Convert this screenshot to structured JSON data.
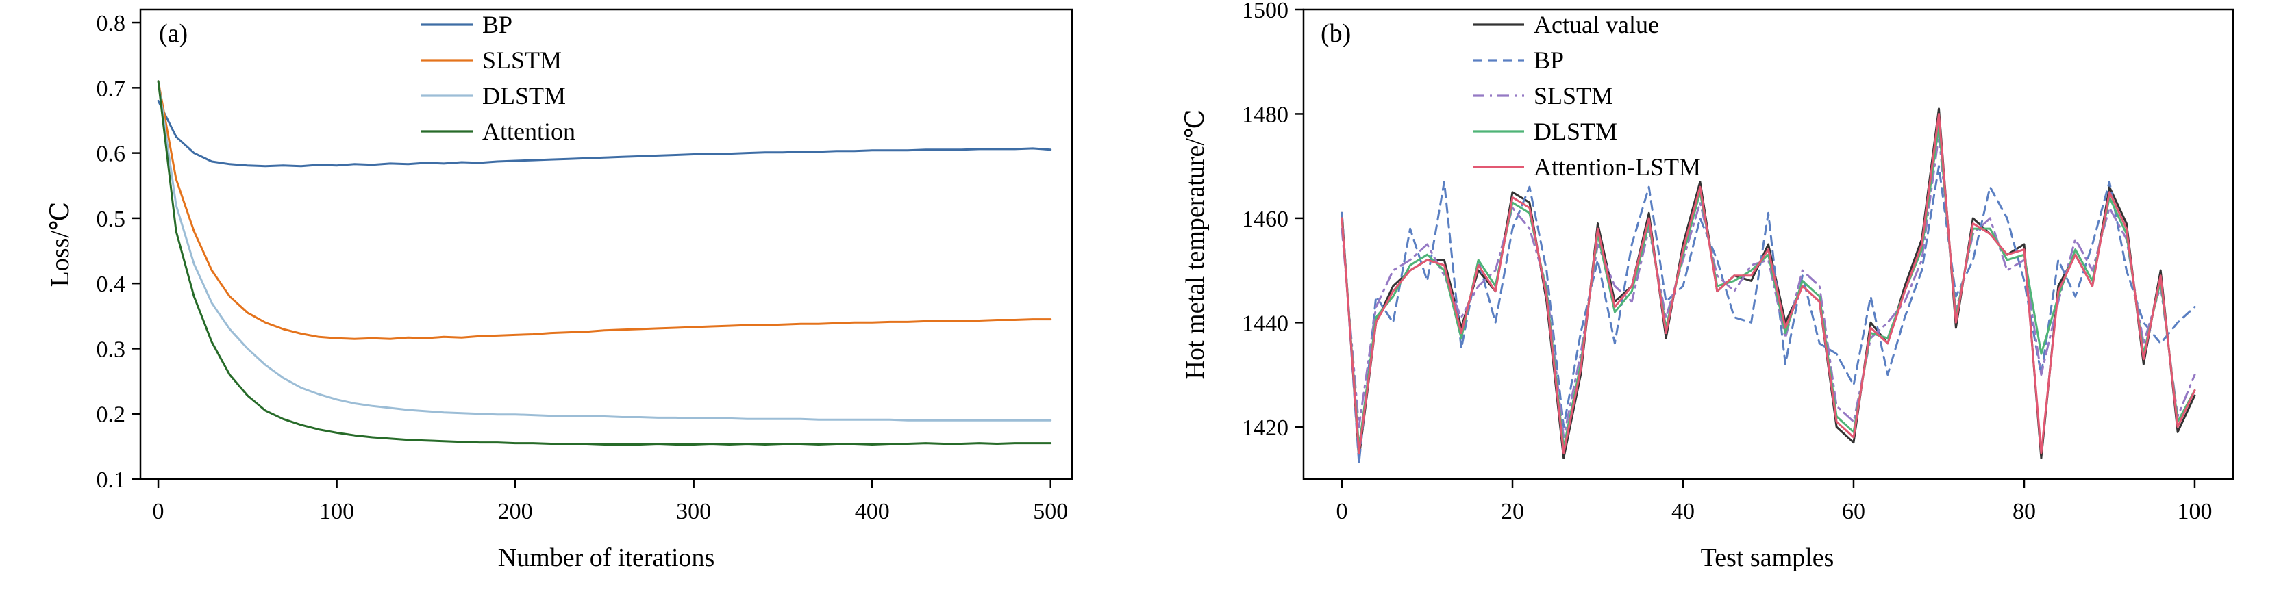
{
  "figure": {
    "background": "#ffffff",
    "axis_color": "#000000"
  },
  "chart_data": [
    {
      "id": "panel-a",
      "type": "line",
      "panel_tag": "(a)",
      "title": "",
      "xlabel": "Number of iterations",
      "ylabel": "Loss/℃",
      "xlim": [
        -10,
        512
      ],
      "ylim": [
        0.1,
        0.82
      ],
      "xticks": [
        0,
        100,
        200,
        300,
        400,
        500
      ],
      "yticks": [
        0.1,
        0.2,
        0.3,
        0.4,
        0.5,
        0.6,
        0.7,
        0.8
      ],
      "ytick_decimals": 1,
      "grid": false,
      "legend_position": "upper-center-right-inside",
      "x": [
        0,
        10,
        20,
        30,
        40,
        50,
        60,
        70,
        80,
        90,
        100,
        110,
        120,
        130,
        140,
        150,
        160,
        170,
        180,
        190,
        200,
        210,
        220,
        230,
        240,
        250,
        260,
        270,
        280,
        290,
        300,
        310,
        320,
        330,
        340,
        350,
        360,
        370,
        380,
        390,
        400,
        410,
        420,
        430,
        440,
        450,
        460,
        470,
        480,
        490,
        500
      ],
      "series": [
        {
          "name": "BP",
          "color": "#3e6da5",
          "dash": null,
          "values": [
            0.68,
            0.625,
            0.6,
            0.587,
            0.583,
            0.581,
            0.58,
            0.581,
            0.58,
            0.582,
            0.581,
            0.583,
            0.582,
            0.584,
            0.583,
            0.585,
            0.584,
            0.586,
            0.585,
            0.587,
            0.588,
            0.589,
            0.59,
            0.591,
            0.592,
            0.593,
            0.594,
            0.595,
            0.596,
            0.597,
            0.598,
            0.598,
            0.599,
            0.6,
            0.601,
            0.601,
            0.602,
            0.602,
            0.603,
            0.603,
            0.604,
            0.604,
            0.604,
            0.605,
            0.605,
            0.605,
            0.606,
            0.606,
            0.606,
            0.607,
            0.605
          ]
        },
        {
          "name": "SLSTM",
          "color": "#e4731c",
          "dash": null,
          "values": [
            0.71,
            0.56,
            0.48,
            0.42,
            0.38,
            0.355,
            0.34,
            0.33,
            0.323,
            0.318,
            0.316,
            0.315,
            0.316,
            0.315,
            0.317,
            0.316,
            0.318,
            0.317,
            0.319,
            0.32,
            0.321,
            0.322,
            0.324,
            0.325,
            0.326,
            0.328,
            0.329,
            0.33,
            0.331,
            0.332,
            0.333,
            0.334,
            0.335,
            0.336,
            0.336,
            0.337,
            0.338,
            0.338,
            0.339,
            0.34,
            0.34,
            0.341,
            0.341,
            0.342,
            0.342,
            0.343,
            0.343,
            0.344,
            0.344,
            0.345,
            0.345
          ]
        },
        {
          "name": "DLSTM",
          "color": "#9cbdd6",
          "dash": null,
          "values": [
            0.71,
            0.52,
            0.43,
            0.37,
            0.33,
            0.3,
            0.275,
            0.255,
            0.24,
            0.23,
            0.222,
            0.216,
            0.212,
            0.209,
            0.206,
            0.204,
            0.202,
            0.201,
            0.2,
            0.199,
            0.199,
            0.198,
            0.197,
            0.197,
            0.196,
            0.196,
            0.195,
            0.195,
            0.194,
            0.194,
            0.193,
            0.193,
            0.193,
            0.192,
            0.192,
            0.192,
            0.192,
            0.191,
            0.191,
            0.191,
            0.191,
            0.191,
            0.19,
            0.19,
            0.19,
            0.19,
            0.19,
            0.19,
            0.19,
            0.19,
            0.19
          ]
        },
        {
          "name": "Attention",
          "color": "#276b29",
          "dash": null,
          "values": [
            0.71,
            0.48,
            0.38,
            0.31,
            0.26,
            0.228,
            0.205,
            0.192,
            0.183,
            0.176,
            0.171,
            0.167,
            0.164,
            0.162,
            0.16,
            0.159,
            0.158,
            0.157,
            0.156,
            0.156,
            0.155,
            0.155,
            0.154,
            0.154,
            0.154,
            0.153,
            0.153,
            0.153,
            0.154,
            0.153,
            0.153,
            0.154,
            0.153,
            0.154,
            0.153,
            0.154,
            0.154,
            0.153,
            0.154,
            0.154,
            0.153,
            0.154,
            0.154,
            0.155,
            0.154,
            0.154,
            0.155,
            0.154,
            0.155,
            0.155,
            0.155
          ]
        }
      ]
    },
    {
      "id": "panel-b",
      "type": "line",
      "panel_tag": "(b)",
      "title": "",
      "xlabel": "Test samples",
      "ylabel": "Hot metal temperature/℃",
      "xlim": [
        -4.5,
        104.5
      ],
      "ylim": [
        1410,
        1500
      ],
      "xticks": [
        0,
        20,
        40,
        60,
        80,
        100
      ],
      "yticks": [
        1420,
        1440,
        1460,
        1480,
        1500
      ],
      "ytick_decimals": 0,
      "grid": false,
      "legend_position": "upper-left-center-inside",
      "x": [
        0,
        2,
        4,
        6,
        8,
        10,
        12,
        14,
        16,
        18,
        20,
        22,
        24,
        26,
        28,
        30,
        32,
        34,
        36,
        38,
        40,
        42,
        44,
        46,
        48,
        50,
        52,
        54,
        56,
        58,
        60,
        62,
        64,
        66,
        68,
        70,
        72,
        74,
        76,
        78,
        80,
        82,
        84,
        86,
        88,
        90,
        92,
        94,
        96,
        98,
        100
      ],
      "series": [
        {
          "name": "Actual value",
          "color": "#333333",
          "dash": null,
          "values": [
            1461,
            1414,
            1440,
            1447,
            1450,
            1452,
            1452,
            1439,
            1450,
            1446,
            1465,
            1463,
            1444,
            1414,
            1430,
            1459,
            1444,
            1447,
            1461,
            1437,
            1455,
            1467,
            1446,
            1449,
            1448,
            1455,
            1440,
            1447,
            1444,
            1420,
            1417,
            1440,
            1436,
            1447,
            1456,
            1481,
            1439,
            1460,
            1457,
            1453,
            1455,
            1414,
            1447,
            1453,
            1447,
            1466,
            1459,
            1432,
            1450,
            1419,
            1426
          ]
        },
        {
          "name": "BP",
          "color": "#5a7fc2",
          "dash": "13 9",
          "values": [
            1461,
            1413,
            1445,
            1440,
            1458,
            1448,
            1467,
            1435,
            1452,
            1440,
            1458,
            1466,
            1450,
            1420,
            1438,
            1452,
            1436,
            1455,
            1466,
            1444,
            1447,
            1460,
            1452,
            1441,
            1440,
            1461,
            1432,
            1449,
            1436,
            1434,
            1428,
            1445,
            1430,
            1441,
            1450,
            1470,
            1445,
            1452,
            1466,
            1460,
            1448,
            1430,
            1452,
            1445,
            1455,
            1467,
            1450,
            1440,
            1436,
            1440,
            1443
          ]
        },
        {
          "name": "SLSTM",
          "color": "#9579c4",
          "dash": "17 8 3 8",
          "values": [
            1458,
            1420,
            1443,
            1450,
            1452,
            1455,
            1449,
            1441,
            1447,
            1450,
            1462,
            1458,
            1447,
            1418,
            1434,
            1455,
            1447,
            1444,
            1458,
            1441,
            1452,
            1463,
            1449,
            1446,
            1451,
            1452,
            1437,
            1450,
            1447,
            1424,
            1421,
            1437,
            1440,
            1444,
            1452,
            1476,
            1442,
            1457,
            1460,
            1450,
            1452,
            1430,
            1444,
            1456,
            1450,
            1462,
            1456,
            1436,
            1447,
            1422,
            1430
          ]
        },
        {
          "name": "DLSTM",
          "color": "#4fb477",
          "dash": null,
          "values": [
            1460,
            1416,
            1441,
            1445,
            1451,
            1453,
            1450,
            1437,
            1452,
            1447,
            1463,
            1461,
            1446,
            1416,
            1432,
            1457,
            1442,
            1446,
            1459,
            1439,
            1453,
            1465,
            1447,
            1448,
            1450,
            1453,
            1438,
            1448,
            1445,
            1422,
            1419,
            1438,
            1437,
            1446,
            1454,
            1478,
            1441,
            1458,
            1458,
            1452,
            1453,
            1434,
            1445,
            1454,
            1448,
            1464,
            1457,
            1434,
            1448,
            1421,
            1427
          ]
        },
        {
          "name": "Attention-LSTM",
          "color": "#e25872",
          "dash": null,
          "values": [
            1460,
            1415,
            1440,
            1446,
            1450,
            1452,
            1451,
            1438,
            1451,
            1446,
            1464,
            1462,
            1445,
            1415,
            1431,
            1458,
            1443,
            1447,
            1460,
            1438,
            1454,
            1466,
            1446,
            1449,
            1449,
            1454,
            1439,
            1447,
            1444,
            1421,
            1418,
            1439,
            1436,
            1446,
            1455,
            1480,
            1440,
            1459,
            1457,
            1453,
            1454,
            1415,
            1446,
            1453,
            1447,
            1465,
            1458,
            1433,
            1449,
            1420,
            1427
          ]
        }
      ]
    }
  ]
}
